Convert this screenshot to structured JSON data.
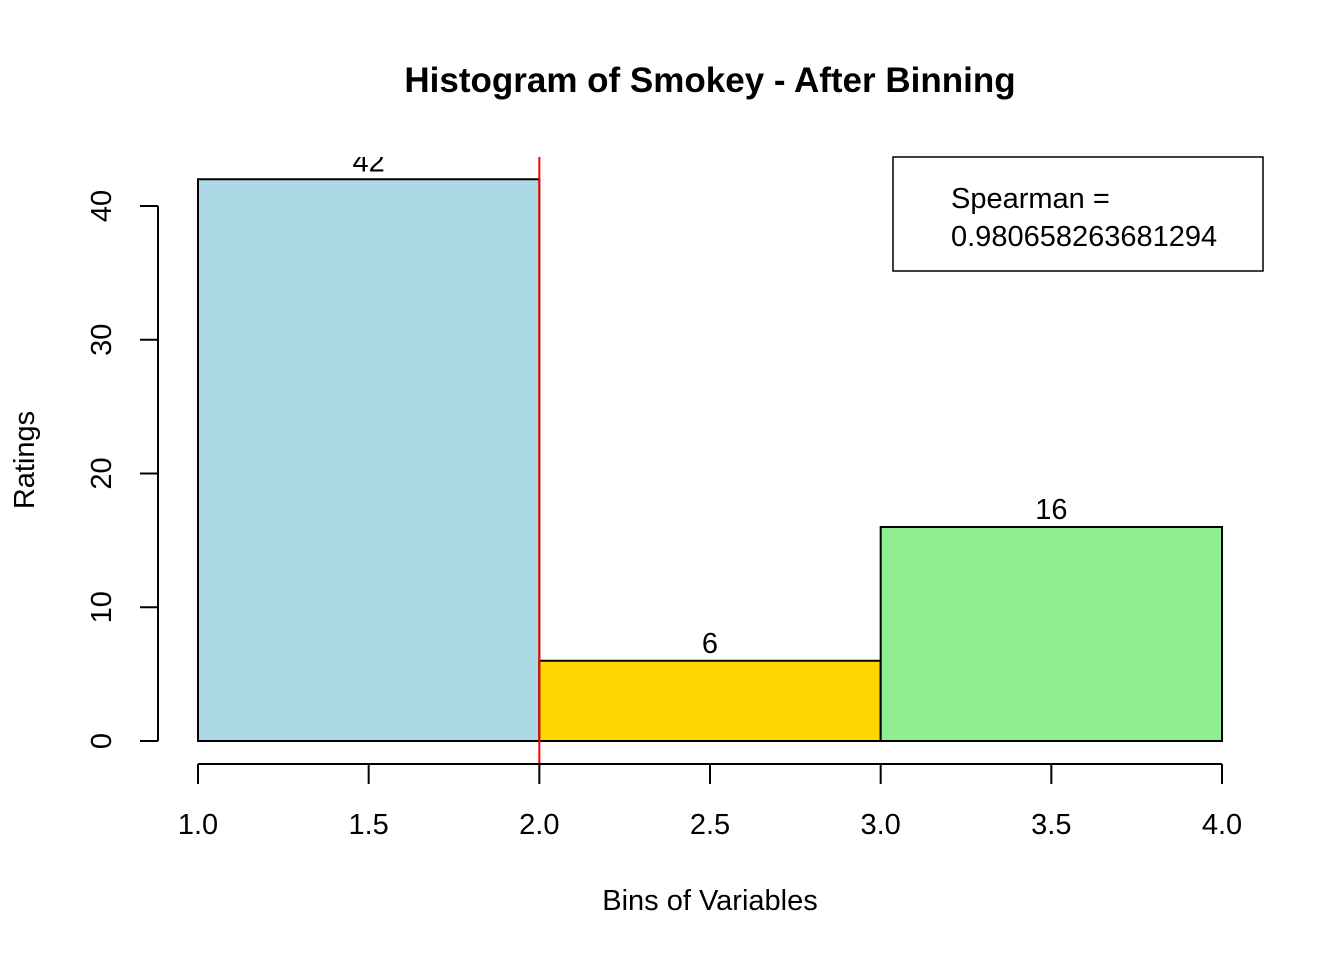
{
  "chart_data": {
    "type": "bar",
    "title": "Histogram of Smokey - After Binning",
    "xlabel": "Bins of Variables",
    "ylabel": "Ratings",
    "xlim": [
      1.0,
      4.0
    ],
    "ylim": [
      0,
      42
    ],
    "x_ticks": [
      "1.0",
      "1.5",
      "2.0",
      "2.5",
      "3.0",
      "3.5",
      "4.0"
    ],
    "y_ticks": [
      "0",
      "10",
      "20",
      "30",
      "40"
    ],
    "bins": [
      {
        "start": 1.0,
        "end": 2.0,
        "value": 42,
        "label": "42",
        "color": "#ADD8E6"
      },
      {
        "start": 2.0,
        "end": 3.0,
        "value": 6,
        "label": "6",
        "color": "#FFD700"
      },
      {
        "start": 3.0,
        "end": 4.0,
        "value": 16,
        "label": "16",
        "color": "#90EE90"
      }
    ],
    "vline": {
      "x": 2.0,
      "color": "#FF0000"
    },
    "legend": {
      "position": "top-right",
      "lines": [
        "Spearman =",
        "0.980658263681294"
      ]
    },
    "grid": false
  }
}
